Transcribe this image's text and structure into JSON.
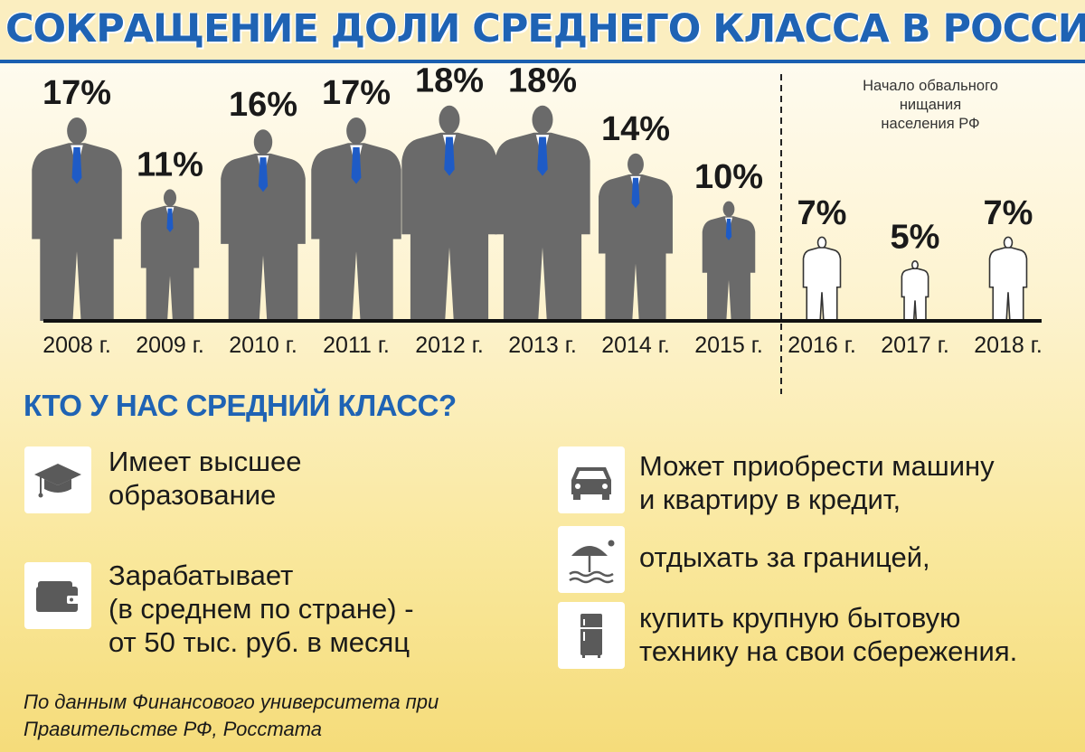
{
  "title": "СОКРАЩЕНИЕ ДОЛИ СРЕДНЕГО КЛАССА В РОССИИ",
  "chart_data": {
    "type": "bar",
    "title": "СОКРАЩЕНИЕ ДОЛИ СРЕДНЕГО КЛАССА В РОССИИ",
    "categories": [
      "2008 г.",
      "2009 г.",
      "2010 г.",
      "2011 г.",
      "2012 г.",
      "2013 г.",
      "2014 г.",
      "2015 г.",
      "2016 г.",
      "2017 г.",
      "2018 г."
    ],
    "values": [
      17,
      11,
      16,
      17,
      18,
      18,
      14,
      10,
      7,
      5,
      7
    ],
    "value_labels": [
      "17%",
      "11%",
      "16%",
      "17%",
      "18%",
      "18%",
      "14%",
      "10%",
      "7%",
      "5%",
      "7%"
    ],
    "unit": "%",
    "marks": "human-figure pictogram, height proportional to value",
    "filled_color": "#6a6a6a",
    "outline_from_index": 8,
    "annotation": "Начало обвального\nнищания\nнаселения РФ",
    "xlabel": "",
    "ylabel": "",
    "grid": false
  },
  "subtitle": "КТО У НАС СРЕДНИЙ КЛАСС?",
  "features": {
    "education": {
      "icon": "graduation-cap-icon",
      "text": "Имеет высшее\nобразование"
    },
    "salary": {
      "icon": "wallet-icon",
      "text": "Зарабатывает\n(в среднем по стране) -\nот 50 тыс. руб. в месяц"
    },
    "car": {
      "icon": "car-icon",
      "text": "Может приобрести машину\nи квартиру в кредит,"
    },
    "travel": {
      "icon": "beach-umbrella-icon",
      "text": "отдыхать за границей,"
    },
    "appliance": {
      "icon": "refrigerator-icon",
      "text": "купить крупную бытовую\nтехнику на свои сбережения."
    }
  },
  "source": "По данным Финансового университета при\nПравительстве РФ, Росстата",
  "colors": {
    "title_blue": "#1f63b4",
    "figure_gray": "#6a6a6a",
    "tie_blue": "#1e5bc6",
    "icon_gray": "#5a5a5a"
  }
}
